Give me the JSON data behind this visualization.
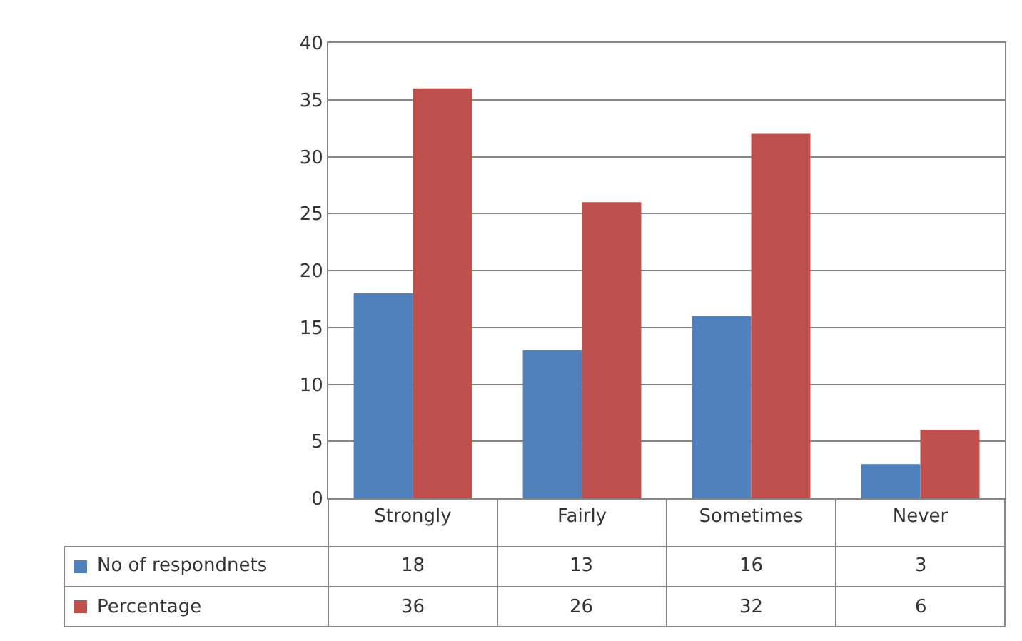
{
  "chart_data": {
    "type": "bar",
    "categories": [
      "Strongly",
      "Fairly",
      "Sometimes",
      "Never"
    ],
    "series": [
      {
        "name": "No of respondnets",
        "color": "#4f81bd",
        "values": [
          18,
          13,
          16,
          3
        ]
      },
      {
        "name": "Percentage",
        "color": "#c0504d",
        "values": [
          36,
          26,
          32,
          6
        ]
      }
    ],
    "ylim": [
      0,
      40
    ],
    "yticks": [
      0,
      5,
      10,
      15,
      20,
      25,
      30,
      35,
      40
    ],
    "grid": "y",
    "legend": "bottom",
    "data_labels": true
  }
}
